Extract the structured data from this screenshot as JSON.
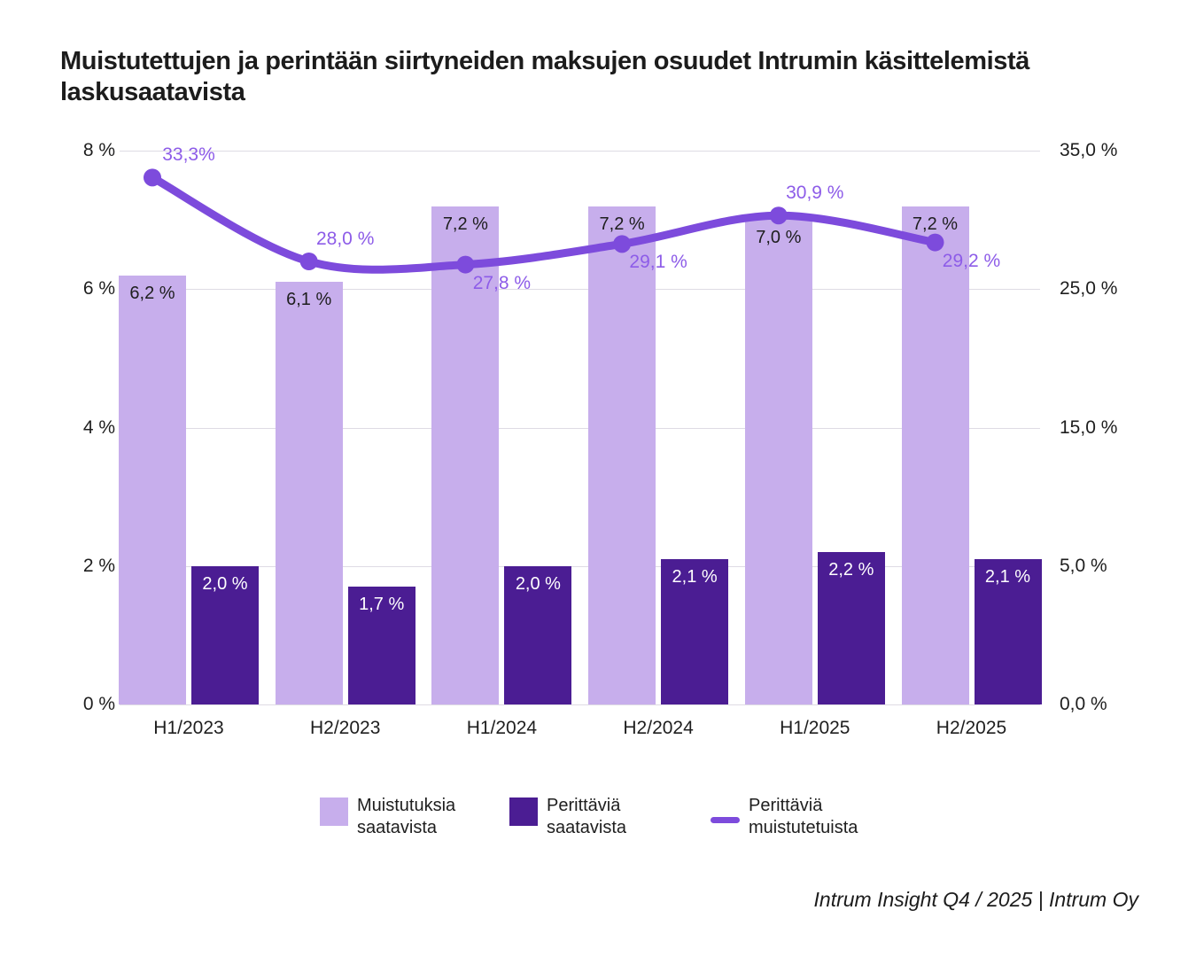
{
  "title": {
    "line1": "Muistutettujen ja perintään siirtyneiden maksujen osuudet Intrumin käsittelemistä",
    "line2": "laskusaatavista"
  },
  "footer": "Intrum Insight Q4 / 2025 | Intrum Oy",
  "colors": {
    "light_bar": "#c7aeec",
    "dark_bar": "#4b1d93",
    "line": "#7d4bdc",
    "line_label": "#8d5ce8",
    "grid": "#dedbe4",
    "text": "#1e1e1e",
    "bar_label_on_light": "#1e1e1e",
    "bar_label_on_dark": "#ffffff",
    "background": "#ffffff"
  },
  "chart_data": {
    "type": "bar",
    "subtype": "grouped-bars-with-line",
    "categories": [
      "H1/2023",
      "H2/2023",
      "H1/2024",
      "H2/2024",
      "H1/2025",
      "H2/2025"
    ],
    "series": [
      {
        "name": "Muistutuksia saatavista",
        "type": "bar",
        "axis": "left",
        "values": [
          6.2,
          6.1,
          7.2,
          7.2,
          7.0,
          7.2
        ],
        "labels": [
          "6,2 %",
          "6,1 %",
          "7,2 %",
          "7,2 %",
          "7,0 %",
          "7,2 %"
        ]
      },
      {
        "name": "Perittäviä saatavista",
        "type": "bar",
        "axis": "left",
        "values": [
          2.0,
          1.7,
          2.0,
          2.1,
          2.2,
          2.1
        ],
        "labels": [
          "2,0 %",
          "1,7 %",
          "2,0 %",
          "2,1 %",
          "2,2 %",
          "2,1 %"
        ]
      },
      {
        "name": "Perittäviä muistutetuista",
        "type": "line",
        "axis": "right",
        "values": [
          33.3,
          28.0,
          27.8,
          29.1,
          30.9,
          29.2
        ],
        "labels": [
          "33,3%",
          "28,0 %",
          "27,8 %",
          "29,1 %",
          "30,9 %",
          "29,2 %"
        ],
        "label_positions": [
          "above",
          "above",
          "below",
          "below",
          "above",
          "below"
        ]
      }
    ],
    "left_axis": {
      "ticks": [
        "8 %",
        "6 %",
        "4 %",
        "2 %",
        "0 %"
      ],
      "range": [
        0,
        8
      ]
    },
    "right_axis": {
      "ticks": [
        "35,0 %",
        "25,0 %",
        "15,0 %",
        "5,0 %",
        "0,0 %"
      ],
      "range": [
        0,
        35
      ]
    },
    "grid": true,
    "legend_position": "bottom"
  },
  "legend": {
    "items": [
      {
        "label_line1": "Muistutuksia",
        "label_line2": "saatavista",
        "swatch": "square-light"
      },
      {
        "label_line1": "Perittäviä",
        "label_line2": "saatavista",
        "swatch": "square-dark"
      },
      {
        "label_line1": "Perittäviä",
        "label_line2": "muistutetuista",
        "swatch": "line"
      }
    ]
  }
}
